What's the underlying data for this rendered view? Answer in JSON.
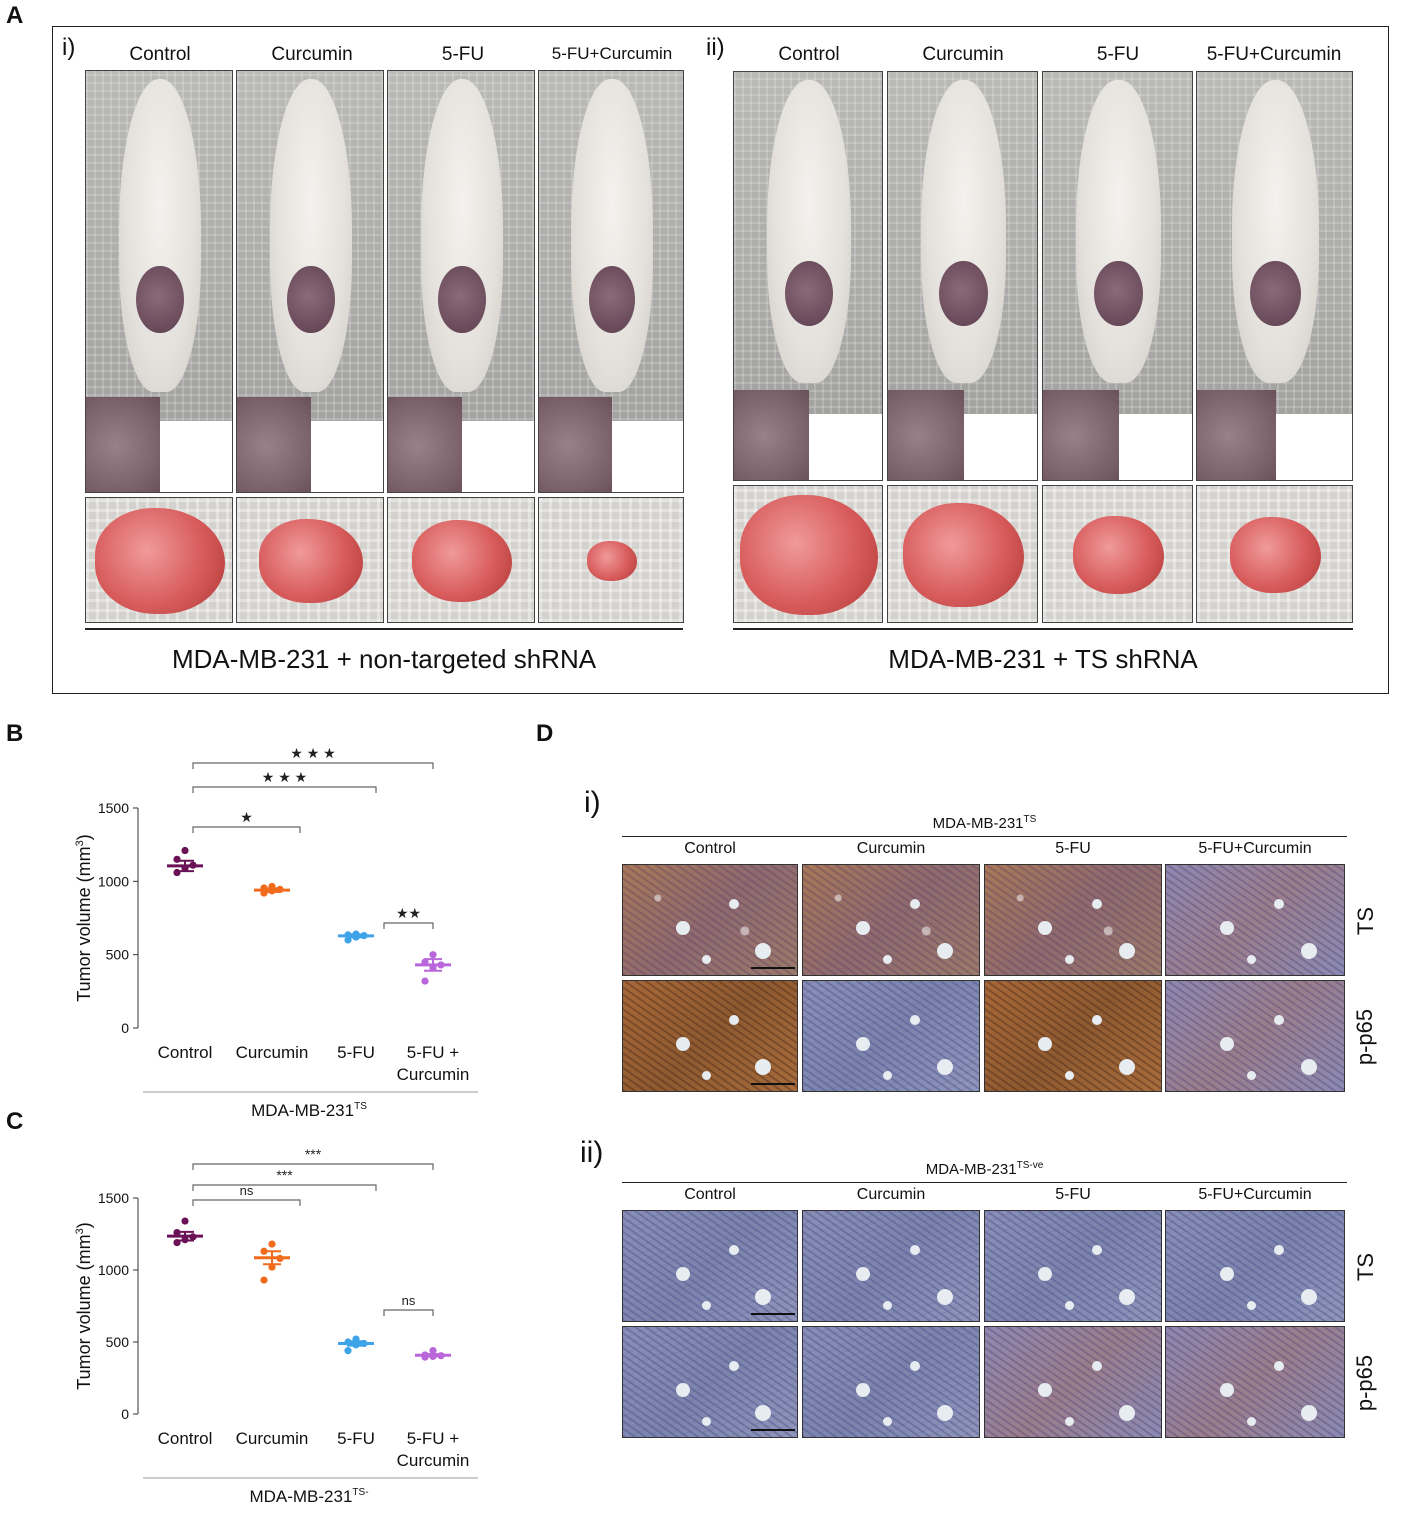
{
  "panels": {
    "A": {
      "letter": "A",
      "left": {
        "sub": "i)",
        "columns": [
          "Control",
          "Curcumin",
          "5-FU",
          "5-FU+Curcumin"
        ],
        "group": "MDA-MB-231 + non-targeted shRNA"
      },
      "right": {
        "sub": "ii)",
        "columns": [
          "Control",
          "Curcumin",
          "5-FU",
          "5-FU+Curcumin"
        ],
        "group": "MDA-MB-231 + TS shRNA"
      }
    },
    "B": {
      "letter": "B"
    },
    "C": {
      "letter": "C"
    },
    "D": {
      "letter": "D",
      "i": {
        "sub": "i)",
        "title_main": "MDA-MB-231",
        "title_sup": "TS",
        "columns": [
          "Control",
          "Curcumin",
          "5-FU",
          "5-FU+Curcumin"
        ],
        "rows": [
          "TS",
          "p-p65"
        ]
      },
      "ii": {
        "sub": "ii)",
        "title_main": "MDA-MB-231",
        "title_sup": "TS-ve",
        "columns": [
          "Control",
          "Curcumin",
          "5-FU",
          "5-FU+Curcumin"
        ],
        "rows": [
          "TS",
          "p-p65"
        ]
      }
    }
  },
  "chart_data": [
    {
      "type": "scatter",
      "panel": "B",
      "ylabel_main": "Tumor volume (mm",
      "ylabel_sup": "3",
      "ylabel_end": ")",
      "ylim": [
        0,
        1500
      ],
      "yticks": [
        0,
        500,
        1000,
        1500
      ],
      "categories": [
        "Control",
        "Curcumin",
        "5-FU",
        "5-FU +\nCurcumin"
      ],
      "cat_line1": [
        "Control",
        "Curcumin",
        "5-FU",
        "5-FU +"
      ],
      "cat_line2": [
        "",
        "",
        "",
        "Curcumin"
      ],
      "xgroup_main": "MDA-MB-231",
      "xgroup_sup": "TS",
      "colors": [
        "#6b1257",
        "#f26b1d",
        "#3fa3e8",
        "#b866d9"
      ],
      "points": [
        [
          1060,
          1090,
          1110,
          1150,
          1210
        ],
        [
          920,
          935,
          945,
          955,
          965
        ],
        [
          600,
          620,
          630,
          635,
          640
        ],
        [
          320,
          410,
          430,
          450,
          500
        ]
      ],
      "mean": [
        1105,
        940,
        628,
        430
      ],
      "sem": [
        35,
        12,
        10,
        40
      ],
      "significance": [
        {
          "from": 0,
          "to": 1,
          "label": "★"
        },
        {
          "from": 2,
          "to": 3,
          "label": "★★"
        },
        {
          "from": 0,
          "to": 2,
          "label": "★ ★ ★"
        },
        {
          "from": 0,
          "to": 3,
          "label": "★ ★ ★"
        }
      ]
    },
    {
      "type": "scatter",
      "panel": "C",
      "ylabel_main": "Tumor volume (mm",
      "ylabel_sup": "3",
      "ylabel_end": ")",
      "ylim": [
        0,
        1500
      ],
      "yticks": [
        0,
        500,
        1000,
        1500
      ],
      "categories": [
        "Control",
        "Curcumin",
        "5-FU",
        "5-FU +\nCurcumin"
      ],
      "cat_line1": [
        "Control",
        "Curcumin",
        "5-FU",
        "5-FU +"
      ],
      "cat_line2": [
        "",
        "",
        "",
        "Curcumin"
      ],
      "xgroup_main": "MDA-MB-231",
      "xgroup_sup": "TS-",
      "colors": [
        "#6b1257",
        "#f26b1d",
        "#3fa3e8",
        "#b866d9"
      ],
      "points": [
        [
          1190,
          1210,
          1230,
          1260,
          1340
        ],
        [
          930,
          1020,
          1080,
          1130,
          1180
        ],
        [
          440,
          480,
          490,
          500,
          520
        ],
        [
          395,
          400,
          405,
          410,
          440
        ]
      ],
      "mean": [
        1235,
        1085,
        490,
        408
      ],
      "sem": [
        30,
        45,
        15,
        8
      ],
      "significance": [
        {
          "from": 0,
          "to": 1,
          "label": "ns"
        },
        {
          "from": 2,
          "to": 3,
          "label": "ns"
        },
        {
          "from": 0,
          "to": 2,
          "label": "***"
        },
        {
          "from": 0,
          "to": 3,
          "label": "***"
        }
      ]
    }
  ]
}
